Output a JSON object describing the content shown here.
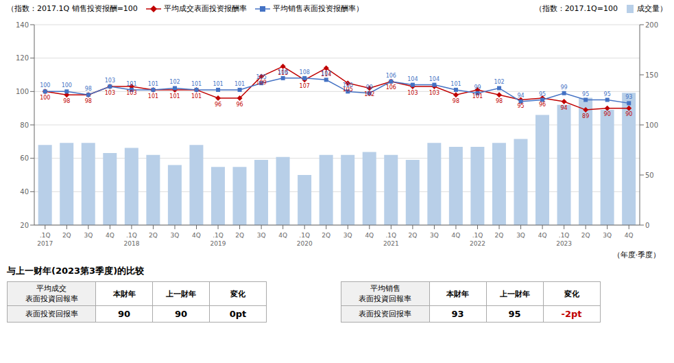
{
  "chart_data": [
    {
      "type": "bar",
      "xlabel": "（年度·季度）",
      "ylabel": "（指数：2017.1Q 销售投资报酬=100",
      "y2label": "（指数：2017.1Q=100",
      "categories": [
        ".1Q\n2017",
        "2Q",
        "3Q",
        "4Q",
        ".1Q\n2018",
        "2Q",
        "3Q",
        "4Q",
        ".1Q\n2019",
        "2Q",
        "3Q",
        "4Q",
        ".1Q\n2020",
        "2Q",
        "3Q",
        "4Q",
        ".1Q\n2021",
        "2Q",
        "3Q",
        "4Q",
        ".1Q\n2022",
        "2Q",
        "3Q",
        "4Q",
        ".1Q\n2023",
        "2Q",
        "3Q",
        "4Q"
      ],
      "series": [
        {
          "name": "成交量）",
          "type": "bar",
          "axis": "y2",
          "color": "#b8cfe8",
          "values": [
            80,
            82,
            82,
            72,
            77,
            70,
            60,
            80,
            58,
            58,
            65,
            68,
            50,
            70,
            70,
            73,
            70,
            65,
            82,
            78,
            78,
            82,
            86,
            110,
            120,
            127,
            115,
            132
          ]
        },
        {
          "name": "平均成交表面投资报酬率",
          "type": "line",
          "color": "#c00000",
          "marker": "diamond",
          "data_labels": true,
          "values": [
            100,
            98,
            98,
            103,
            103,
            101,
            101,
            101,
            96,
            96,
            109,
            115,
            107,
            114,
            105,
            102,
            106,
            103,
            103,
            98,
            101,
            98,
            95,
            96,
            94,
            89,
            90,
            90
          ]
        },
        {
          "name": "平均销售表面投资报酬率）",
          "type": "line",
          "color": "#4472c4",
          "marker": "square",
          "data_labels": true,
          "values": [
            100,
            100,
            98,
            103,
            101,
            101,
            102,
            101,
            101,
            101,
            105,
            108,
            108,
            107,
            100,
            99,
            106,
            104,
            104,
            101,
            99,
            102,
            94,
            95,
            99,
            95,
            95,
            93
          ]
        }
      ],
      "ylim": [
        20,
        140
      ],
      "yticks": [
        20,
        40,
        60,
        80,
        100,
        120,
        140
      ],
      "y2lim": [
        0,
        200
      ],
      "y2ticks": [
        0,
        50,
        100,
        150,
        200
      ],
      "grid": true,
      "legend": "top"
    },
    {
      "type": "table",
      "title": "与上一财年(2023第3季度)的比较",
      "ylabel": "平均成交\n表面投資回報率",
      "categories": [
        "本財年",
        "上一財年",
        "変化"
      ],
      "series": [
        {
          "name": "表面投资回报率",
          "values": [
            90,
            90,
            0
          ],
          "value_labels": [
            "90",
            "90",
            "0pt"
          ],
          "colors": [
            "black",
            "black",
            "black"
          ]
        }
      ]
    },
    {
      "type": "table",
      "ylabel": "平均销售\n表面投資回報率",
      "categories": [
        "本財年",
        "上一財年",
        "変化"
      ],
      "series": [
        {
          "name": "表面投资回报率",
          "values": [
            93,
            95,
            -2
          ],
          "value_labels": [
            "93",
            "95",
            "-2pt"
          ],
          "colors": [
            "black",
            "black",
            "#c00000"
          ]
        }
      ]
    }
  ]
}
